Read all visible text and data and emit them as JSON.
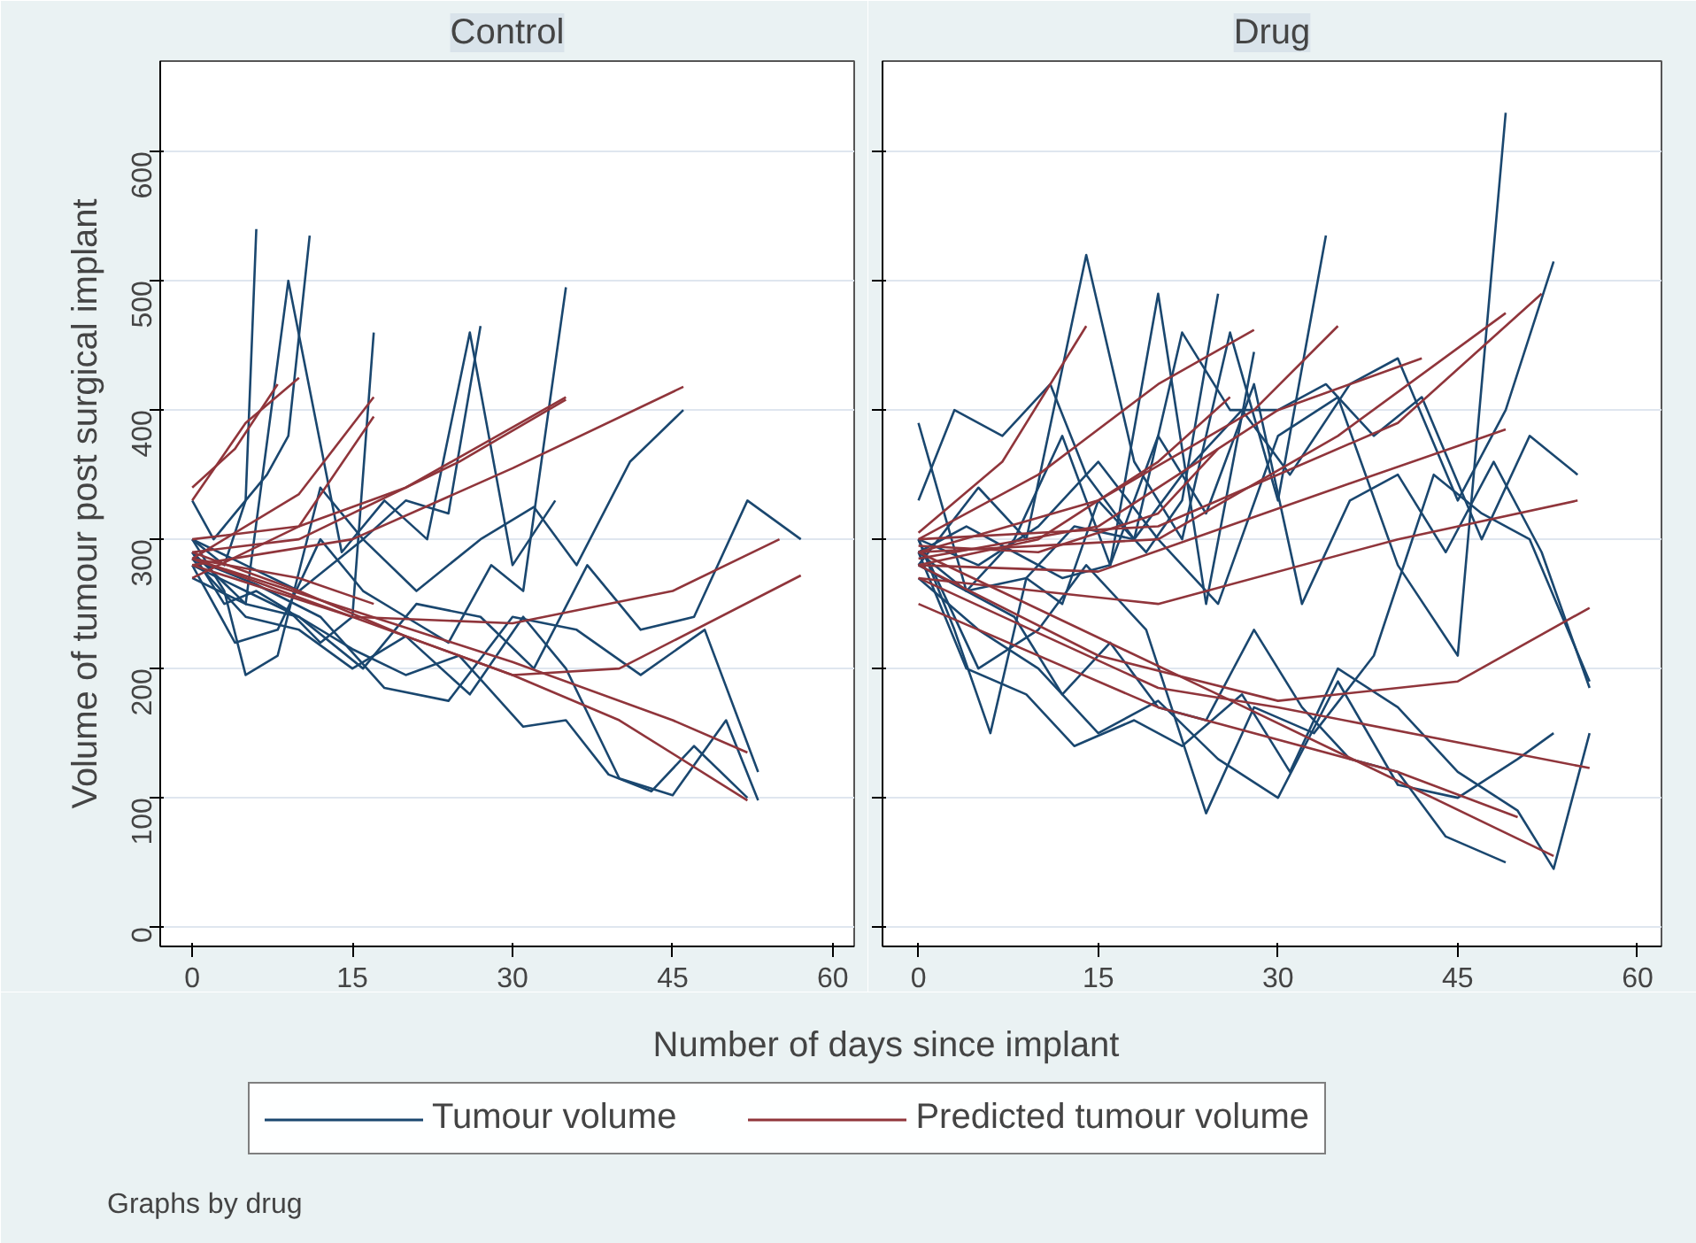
{
  "chart_data": [
    {
      "type": "line",
      "title": "Control",
      "ylabel": "Volume of tumour post surgical implant",
      "xlabel": "Number of days since implant",
      "xlim": [
        -3,
        62
      ],
      "ylim": [
        -15,
        670
      ],
      "xticks": [
        0,
        15,
        30,
        45,
        60
      ],
      "yticks": [
        0,
        100,
        200,
        300,
        400,
        500,
        600
      ],
      "grid": "y",
      "legend": "bottom",
      "annotations": [
        "Graphs by drug"
      ],
      "series": [
        {
          "name": "Tumour volume",
          "color": "#1a476f",
          "x": [
            0,
            3,
            5,
            6
          ],
          "values": [
            300,
            280,
            330,
            540
          ]
        },
        {
          "color": "#1a476f",
          "x": [
            0,
            2,
            4,
            7,
            9,
            11
          ],
          "values": [
            330,
            300,
            320,
            350,
            380,
            535
          ]
        },
        {
          "color": "#1a476f",
          "x": [
            0,
            3,
            6,
            9,
            12,
            15,
            17
          ],
          "values": [
            290,
            250,
            260,
            245,
            220,
            240,
            460
          ]
        },
        {
          "color": "#1a476f",
          "x": [
            0,
            3,
            5,
            8,
            12,
            16,
            20,
            24,
            27
          ],
          "values": [
            300,
            260,
            195,
            210,
            340,
            300,
            330,
            320,
            465
          ]
        },
        {
          "color": "#1a476f",
          "x": [
            0,
            4,
            8,
            12,
            16,
            20,
            24,
            28,
            31,
            35
          ],
          "values": [
            280,
            220,
            230,
            300,
            260,
            240,
            220,
            280,
            260,
            495
          ]
        },
        {
          "color": "#1a476f",
          "x": [
            0,
            5,
            10,
            15,
            20,
            25,
            31,
            35,
            39,
            43,
            47,
            52
          ],
          "values": [
            290,
            250,
            240,
            215,
            195,
            210,
            155,
            160,
            118,
            105,
            140,
            100
          ]
        },
        {
          "color": "#1a476f",
          "x": [
            0,
            5,
            10,
            15,
            20,
            26,
            31,
            35,
            40,
            45,
            50,
            53
          ],
          "values": [
            285,
            240,
            230,
            200,
            225,
            180,
            240,
            200,
            115,
            102,
            160,
            98
          ]
        },
        {
          "color": "#1a476f",
          "x": [
            0,
            5,
            10,
            16,
            21,
            27,
            32,
            37,
            42,
            47,
            52,
            57
          ],
          "values": [
            280,
            260,
            240,
            200,
            250,
            240,
            200,
            280,
            230,
            240,
            330,
            300
          ]
        },
        {
          "color": "#1a476f",
          "x": [
            0,
            5,
            10,
            16,
            21,
            27,
            32,
            36,
            41,
            46
          ],
          "values": [
            300,
            280,
            260,
            300,
            260,
            300,
            325,
            280,
            360,
            400
          ]
        },
        {
          "color": "#1a476f",
          "x": [
            0,
            5,
            9,
            14,
            18,
            22,
            26,
            30,
            34
          ],
          "values": [
            270,
            250,
            500,
            290,
            330,
            300,
            460,
            280,
            330
          ]
        },
        {
          "color": "#1a476f",
          "x": [
            0,
            6,
            12,
            18,
            24,
            30,
            36,
            42,
            48,
            53
          ],
          "values": [
            285,
            265,
            240,
            185,
            175,
            240,
            230,
            195,
            230,
            120
          ]
        },
        {
          "name": "Predicted tumour volume",
          "color": "#90353b",
          "x": [
            0,
            10,
            20,
            30,
            40,
            52
          ],
          "values": [
            290,
            260,
            225,
            195,
            160,
            98
          ]
        },
        {
          "color": "#90353b",
          "x": [
            0,
            15,
            30,
            45,
            52
          ],
          "values": [
            285,
            245,
            205,
            160,
            135
          ]
        },
        {
          "color": "#90353b",
          "x": [
            0,
            15,
            30,
            40,
            57
          ],
          "values": [
            280,
            240,
            195,
            200,
            272
          ]
        },
        {
          "color": "#90353b",
          "x": [
            0,
            15,
            30,
            45,
            55
          ],
          "values": [
            285,
            240,
            235,
            260,
            300
          ]
        },
        {
          "color": "#90353b",
          "x": [
            0,
            15,
            30,
            46
          ],
          "values": [
            280,
            300,
            355,
            418
          ]
        },
        {
          "color": "#90353b",
          "x": [
            0,
            10,
            20,
            35
          ],
          "values": [
            300,
            310,
            340,
            410
          ]
        },
        {
          "color": "#90353b",
          "x": [
            0,
            10,
            25,
            35
          ],
          "values": [
            290,
            300,
            360,
            408
          ]
        },
        {
          "color": "#90353b",
          "x": [
            0,
            10,
            17
          ],
          "values": [
            285,
            335,
            410
          ]
        },
        {
          "color": "#90353b",
          "x": [
            0,
            5,
            10
          ],
          "values": [
            330,
            390,
            425
          ]
        },
        {
          "color": "#90353b",
          "x": [
            0,
            4,
            8
          ],
          "values": [
            340,
            370,
            420
          ]
        },
        {
          "color": "#90353b",
          "x": [
            0,
            10,
            17
          ],
          "values": [
            270,
            310,
            395
          ]
        },
        {
          "color": "#90353b",
          "x": [
            0,
            10,
            17
          ],
          "values": [
            285,
            270,
            250
          ]
        }
      ]
    },
    {
      "type": "line",
      "title": "Drug",
      "xlim": [
        -3,
        62
      ],
      "ylim": [
        -15,
        670
      ],
      "xticks": [
        0,
        15,
        30,
        45,
        60
      ],
      "yticks": [
        0,
        100,
        200,
        300,
        400,
        500,
        600
      ],
      "grid": "y",
      "tick_labels": "x",
      "series": [
        {
          "color": "#1a476f",
          "x": [
            0,
            3,
            6,
            9,
            12,
            15,
            19,
            22,
            25
          ],
          "values": [
            300,
            230,
            150,
            270,
            250,
            330,
            290,
            330,
            490
          ]
        },
        {
          "color": "#1a476f",
          "x": [
            0,
            4,
            8,
            12,
            16,
            20,
            24,
            28,
            32,
            36,
            40,
            44,
            49
          ],
          "values": [
            290,
            260,
            240,
            180,
            220,
            170,
            160,
            230,
            170,
            130,
            120,
            70,
            50
          ]
        },
        {
          "color": "#1a476f",
          "x": [
            0,
            5,
            10,
            15,
            20,
            25,
            30,
            35,
            40,
            45,
            49
          ],
          "values": [
            300,
            280,
            310,
            360,
            300,
            250,
            380,
            410,
            280,
            210,
            630
          ]
        },
        {
          "color": "#1a476f",
          "x": [
            0,
            4,
            9,
            13,
            18,
            22,
            27,
            31,
            36,
            40,
            45,
            49,
            53
          ],
          "values": [
            280,
            260,
            270,
            310,
            300,
            350,
            400,
            350,
            420,
            440,
            330,
            400,
            515
          ]
        },
        {
          "color": "#1a476f",
          "x": [
            0,
            5,
            10,
            14,
            19,
            24,
            28,
            33,
            38,
            43,
            47,
            51,
            56
          ],
          "values": [
            300,
            200,
            230,
            280,
            230,
            88,
            170,
            150,
            210,
            350,
            320,
            300,
            190
          ]
        },
        {
          "color": "#1a476f",
          "x": [
            0,
            4,
            9,
            13,
            18,
            22,
            27,
            31,
            35,
            40,
            45,
            50,
            53,
            56
          ],
          "values": [
            290,
            200,
            180,
            140,
            160,
            140,
            180,
            120,
            200,
            170,
            120,
            90,
            45,
            150
          ]
        },
        {
          "color": "#1a476f",
          "x": [
            0,
            3,
            7,
            11,
            14,
            18,
            22,
            26,
            30,
            34,
            38,
            42,
            47,
            51,
            55
          ],
          "values": [
            330,
            400,
            380,
            420,
            350,
            300,
            460,
            400,
            400,
            420,
            380,
            410,
            300,
            380,
            350
          ]
        },
        {
          "color": "#1a476f",
          "x": [
            0,
            5,
            9,
            14,
            18,
            22,
            26,
            30,
            34
          ],
          "values": [
            280,
            340,
            300,
            520,
            360,
            300,
            460,
            330,
            535
          ]
        },
        {
          "color": "#1a476f",
          "x": [
            0,
            5,
            10,
            15,
            20,
            25,
            30,
            35,
            40,
            45,
            50,
            53
          ],
          "values": [
            270,
            230,
            200,
            150,
            175,
            130,
            100,
            190,
            110,
            100,
            130,
            150
          ]
        },
        {
          "color": "#1a476f",
          "x": [
            0,
            4,
            8,
            12,
            16,
            20,
            24,
            28
          ],
          "values": [
            390,
            260,
            300,
            380,
            280,
            490,
            250,
            445
          ]
        },
        {
          "color": "#1a476f",
          "x": [
            0,
            4,
            8,
            12,
            16,
            20,
            24,
            28,
            32,
            36,
            40,
            44,
            48,
            52,
            56
          ],
          "values": [
            290,
            310,
            290,
            270,
            280,
            380,
            320,
            420,
            250,
            330,
            350,
            290,
            360,
            290,
            185
          ]
        },
        {
          "color": "#90353b",
          "x": [
            0,
            25,
            53
          ],
          "values": [
            290,
            180,
            55
          ]
        },
        {
          "color": "#90353b",
          "x": [
            0,
            20,
            30,
            56
          ],
          "values": [
            270,
            185,
            170,
            123
          ]
        },
        {
          "color": "#90353b",
          "x": [
            0,
            15,
            30,
            45,
            56
          ],
          "values": [
            280,
            210,
            175,
            190,
            247
          ]
        },
        {
          "color": "#90353b",
          "x": [
            0,
            20,
            40,
            55
          ],
          "values": [
            270,
            250,
            300,
            330
          ]
        },
        {
          "color": "#90353b",
          "x": [
            0,
            15,
            35,
            49
          ],
          "values": [
            280,
            275,
            340,
            385
          ]
        },
        {
          "color": "#90353b",
          "x": [
            0,
            20,
            40,
            52
          ],
          "values": [
            300,
            310,
            390,
            490
          ]
        },
        {
          "color": "#90353b",
          "x": [
            0,
            20,
            35,
            49
          ],
          "values": [
            290,
            300,
            380,
            475
          ]
        },
        {
          "color": "#90353b",
          "x": [
            0,
            15,
            30,
            42
          ],
          "values": [
            285,
            310,
            400,
            440
          ]
        },
        {
          "color": "#90353b",
          "x": [
            0,
            10,
            20,
            28
          ],
          "values": [
            300,
            350,
            420,
            462
          ]
        },
        {
          "color": "#90353b",
          "x": [
            0,
            7,
            14
          ],
          "values": [
            305,
            360,
            465
          ]
        },
        {
          "color": "#90353b",
          "x": [
            0,
            15,
            28,
            35
          ],
          "values": [
            290,
            330,
            400,
            465
          ]
        },
        {
          "color": "#90353b",
          "x": [
            0,
            10,
            20,
            26
          ],
          "values": [
            280,
            300,
            360,
            410
          ]
        },
        {
          "color": "#90353b",
          "x": [
            0,
            10,
            20,
            25
          ],
          "values": [
            295,
            290,
            320,
            370
          ]
        },
        {
          "color": "#90353b",
          "x": [
            0,
            20,
            40,
            50
          ],
          "values": [
            250,
            170,
            120,
            85
          ]
        }
      ]
    }
  ]
}
